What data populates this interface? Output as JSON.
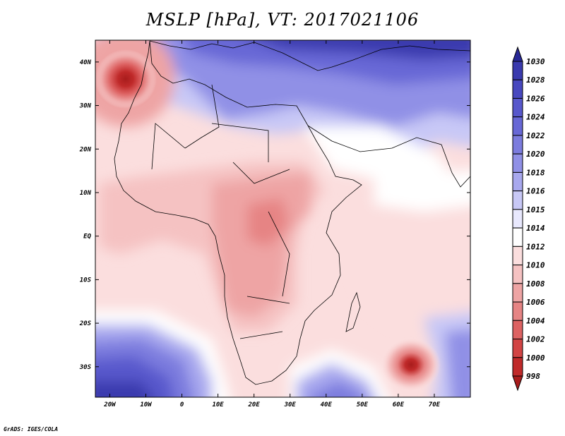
{
  "title": "MSLP [hPa], VT: 2017021106",
  "credit": "GrADS: IGES/COLA",
  "axes": {
    "lat_labels": [
      "40N",
      "30N",
      "20N",
      "10N",
      "EQ",
      "10S",
      "20S",
      "30S"
    ],
    "lon_labels": [
      "20W",
      "10W",
      "0",
      "10E",
      "20E",
      "30E",
      "40E",
      "50E",
      "60E",
      "70E"
    ]
  },
  "colorbar": {
    "labels": [
      "1030",
      "1028",
      "1026",
      "1024",
      "1022",
      "1020",
      "1018",
      "1016",
      "1015",
      "1014",
      "1012",
      "1010",
      "1008",
      "1006",
      "1004",
      "1002",
      "1000",
      "998"
    ],
    "colors": [
      "#282896",
      "#3a3aae",
      "#4848bf",
      "#5858cc",
      "#6868d6",
      "#7c7cde",
      "#9090e6",
      "#a8a8ee",
      "#c8c8f6",
      "#e8e8fd",
      "#ffffff",
      "#fbdede",
      "#f5c2c2",
      "#eea4a4",
      "#e68484",
      "#dd6262",
      "#d24444",
      "#c02a2a",
      "#a81c1c"
    ]
  },
  "chart_data": {
    "type": "heatmap",
    "title": "MSLP [hPa], VT: 2017021106",
    "variable": "MSLP",
    "units": "hPa",
    "valid_time": "2017021106",
    "lon_range": [
      -24,
      80
    ],
    "lat_range": [
      -37,
      45
    ],
    "contour_levels": [
      998,
      1000,
      1002,
      1004,
      1006,
      1008,
      1010,
      1012,
      1014,
      1015,
      1016,
      1018,
      1020,
      1022,
      1024,
      1026,
      1028,
      1030
    ],
    "features": [
      {
        "name": "low off Morocco",
        "lon": -15,
        "lat": 36,
        "value": 1000
      },
      {
        "name": "low near Mascarenes",
        "lon": 64,
        "lat": -29,
        "value": 998
      },
      {
        "name": "high over Europe / Mediterranean",
        "lon": 30,
        "lat": 44,
        "value": 1030
      },
      {
        "name": "high over South Atlantic",
        "lon": -14,
        "lat": -35,
        "value": 1028
      },
      {
        "name": "high south of Madagascar",
        "lon": 44,
        "lat": -36,
        "value": 1022
      }
    ]
  }
}
